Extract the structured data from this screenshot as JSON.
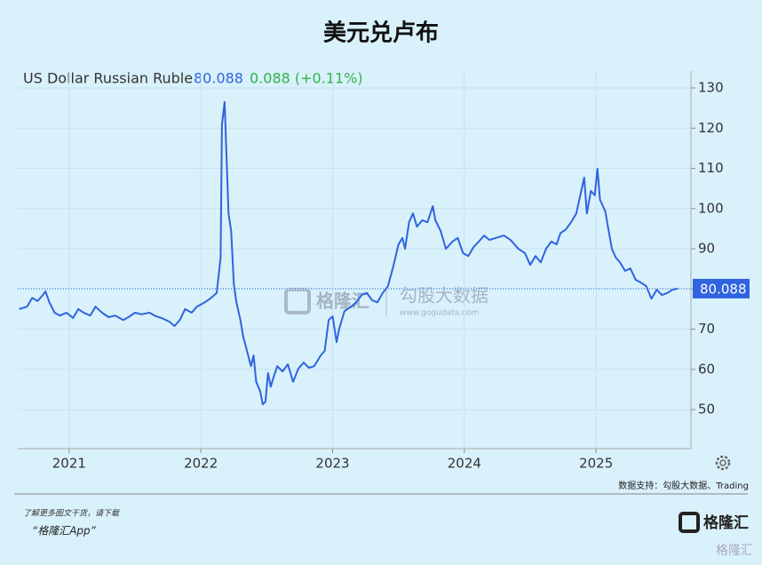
{
  "chart_data": {
    "type": "line",
    "title": "美元兑卢布",
    "instrument": "US Dollar Russian Ruble",
    "last_value": 80.088,
    "change": "0.088 (+0.11%)",
    "color": "#2f63e0",
    "x": [
      2020.62,
      2020.68,
      2020.72,
      2020.76,
      2020.8,
      2020.82,
      2020.85,
      2020.89,
      2020.93,
      2020.98,
      2021.03,
      2021.07,
      2021.11,
      2021.16,
      2021.2,
      2021.25,
      2021.3,
      2021.35,
      2021.41,
      2021.45,
      2021.5,
      2021.55,
      2021.61,
      2021.66,
      2021.7,
      2021.76,
      2021.8,
      2021.84,
      2021.88,
      2021.93,
      2021.97,
      2022.03,
      2022.07,
      2022.12,
      2022.15,
      2022.16,
      2022.18,
      2022.2,
      2022.21,
      2022.23,
      2022.25,
      2022.27,
      2022.3,
      2022.32,
      2022.35,
      2022.38,
      2022.4,
      2022.42,
      2022.45,
      2022.47,
      2022.49,
      2022.51,
      2022.53,
      2022.55,
      2022.58,
      2022.62,
      2022.66,
      2022.7,
      2022.74,
      2022.78,
      2022.82,
      2022.86,
      2022.91,
      2022.94,
      2022.97,
      2023.0,
      2023.03,
      2023.05,
      2023.09,
      2023.14,
      2023.18,
      2023.22,
      2023.26,
      2023.3,
      2023.34,
      2023.38,
      2023.42,
      2023.46,
      2023.5,
      2023.53,
      2023.55,
      2023.58,
      2023.61,
      2023.64,
      2023.68,
      2023.72,
      2023.76,
      2023.78,
      2023.82,
      2023.86,
      2023.91,
      2023.95,
      2023.99,
      2024.03,
      2024.07,
      2024.11,
      2024.15,
      2024.19,
      2024.24,
      2024.3,
      2024.35,
      2024.41,
      2024.46,
      2024.5,
      2024.54,
      2024.58,
      2024.62,
      2024.66,
      2024.7,
      2024.73,
      2024.77,
      2024.81,
      2024.85,
      2024.88,
      2024.91,
      2024.93,
      2024.96,
      2024.99,
      2025.01,
      2025.03,
      2025.07,
      2025.09,
      2025.12,
      2025.15,
      2025.18,
      2025.22,
      2025.26,
      2025.3,
      2025.34,
      2025.38,
      2025.42,
      2025.46,
      2025.5,
      2025.54,
      2025.58,
      2025.62
    ],
    "values": [
      75.0,
      75.6,
      77.8,
      77.0,
      78.5,
      79.4,
      76.7,
      74.1,
      73.4,
      74.1,
      72.8,
      75.0,
      74.1,
      73.4,
      75.6,
      74.1,
      73.0,
      73.4,
      72.3,
      73.0,
      74.1,
      73.7,
      74.1,
      73.2,
      72.8,
      71.9,
      70.8,
      72.3,
      75.0,
      74.1,
      75.6,
      76.7,
      77.6,
      79.0,
      87.8,
      120.9,
      126.5,
      107.7,
      98.8,
      94.4,
      81.2,
      76.7,
      72.3,
      68.3,
      64.6,
      60.8,
      63.5,
      56.9,
      54.6,
      51.3,
      52.0,
      59.1,
      55.7,
      57.9,
      60.8,
      59.5,
      61.3,
      56.9,
      60.2,
      61.7,
      60.4,
      60.8,
      63.5,
      64.6,
      72.3,
      73.2,
      66.8,
      70.1,
      74.5,
      75.6,
      76.7,
      78.5,
      79.0,
      77.2,
      76.7,
      79.0,
      80.7,
      85.6,
      91.1,
      92.7,
      90.0,
      96.6,
      98.8,
      95.5,
      97.1,
      96.6,
      100.6,
      97.1,
      94.4,
      90.0,
      91.8,
      92.7,
      88.9,
      88.2,
      90.4,
      91.8,
      93.3,
      92.2,
      92.7,
      93.3,
      92.2,
      90.0,
      88.9,
      86.0,
      88.2,
      86.6,
      90.0,
      91.8,
      91.1,
      93.9,
      94.8,
      96.6,
      98.8,
      103.3,
      107.7,
      98.8,
      104.4,
      103.3,
      109.9,
      102.2,
      99.3,
      95.5,
      90.0,
      87.8,
      86.7,
      84.5,
      85.1,
      82.3,
      81.6,
      80.7,
      77.6,
      79.8,
      78.5,
      79.0,
      79.8,
      80.088
    ],
    "xlim": [
      2020.61,
      2025.72
    ],
    "xticks": [
      2021,
      2022,
      2023,
      2024,
      2025
    ],
    "ylim": [
      40.3,
      134.2
    ],
    "yticks": [
      50,
      60,
      70,
      80,
      90,
      100,
      110,
      120,
      130
    ],
    "grid": true,
    "watermark": {
      "brand": "格隆汇",
      "name": "勾股大数据",
      "url": "www.gogudata.com"
    },
    "source": "数据支持：勾股大数据、Trading",
    "footer": {
      "line1": "了解更多图文干货，请下载",
      "line2": "“格隆汇App”",
      "logo": "格隆汇",
      "corner": "格隆汇"
    }
  }
}
